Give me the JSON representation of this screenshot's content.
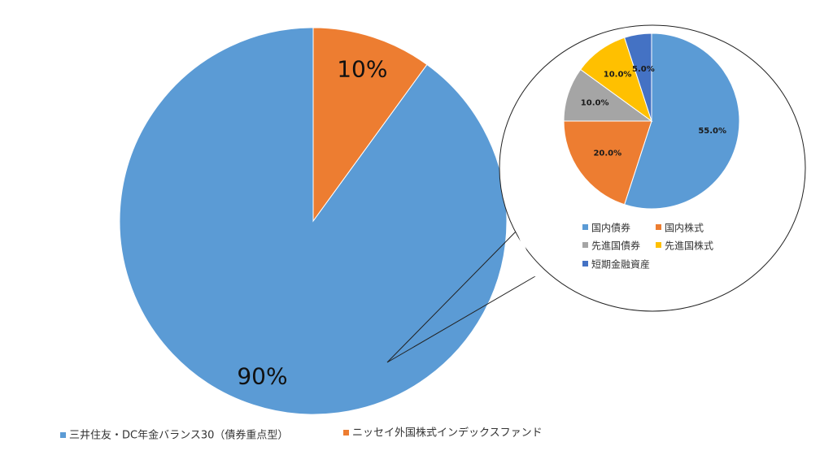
{
  "chart_data": [
    {
      "type": "pie",
      "categories": [
        "三井住友・DC年金バランス30（債券重点型）",
        "ニッセイ外国株式インデックスファンド"
      ],
      "values": [
        90,
        10
      ],
      "data_labels": [
        "90%",
        "10%"
      ],
      "colors": [
        "#5b9bd5",
        "#ed7d31"
      ],
      "legend_position": "bottom-left"
    },
    {
      "type": "pie",
      "categories": [
        "国内債券",
        "国内株式",
        "先進国債券",
        "先進国株式",
        "短期金融資産"
      ],
      "values": [
        55.0,
        20.0,
        10.0,
        10.0,
        5.0
      ],
      "data_labels": [
        "55.0%",
        "20.0%",
        "10.0%",
        "10.0%",
        "5.0%"
      ],
      "colors": [
        "#5b9bd5",
        "#ed7d31",
        "#a5a5a5",
        "#ffc000",
        "#4472c4"
      ],
      "legend_position": "bottom"
    }
  ]
}
